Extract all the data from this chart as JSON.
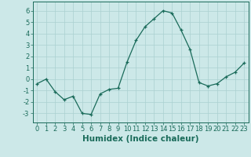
{
  "x": [
    0,
    1,
    2,
    3,
    4,
    5,
    6,
    7,
    8,
    9,
    10,
    11,
    12,
    13,
    14,
    15,
    16,
    17,
    18,
    19,
    20,
    21,
    22,
    23
  ],
  "y": [
    -0.4,
    0.0,
    -1.1,
    -1.8,
    -1.5,
    -3.0,
    -3.1,
    -1.3,
    -0.9,
    -0.8,
    1.5,
    3.4,
    4.6,
    5.3,
    6.0,
    5.8,
    4.3,
    2.6,
    -0.3,
    -0.6,
    -0.4,
    0.2,
    0.6,
    1.4
  ],
  "xlabel": "Humidex (Indice chaleur)",
  "ylim": [
    -3.8,
    6.8
  ],
  "xlim": [
    -0.5,
    23.5
  ],
  "yticks": [
    -3,
    -2,
    -1,
    0,
    1,
    2,
    3,
    4,
    5,
    6
  ],
  "xticks": [
    0,
    1,
    2,
    3,
    4,
    5,
    6,
    7,
    8,
    9,
    10,
    11,
    12,
    13,
    14,
    15,
    16,
    17,
    18,
    19,
    20,
    21,
    22,
    23
  ],
  "line_color": "#1a6b5a",
  "marker": "+",
  "bg_color": "#cce8e8",
  "grid_color": "#aad0d0",
  "xlabel_fontsize": 7.5,
  "tick_fontsize": 6.0
}
